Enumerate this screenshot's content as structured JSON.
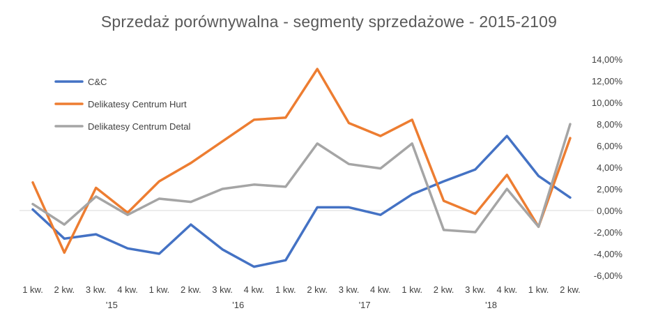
{
  "chart_data": {
    "type": "line",
    "title": "Sprzedaż porównywalna - segmenty sprzedażowe - 2015-2109",
    "categories": [
      "1 kw.",
      "2 kw.",
      "3 kw.",
      "4 kw.",
      "1 kw.",
      "2 kw.",
      "3 kw.",
      "4 kw.",
      "1 kw.",
      "2 kw.",
      "3 kw.",
      "4 kw.",
      "1 kw.",
      "2 kw.",
      "3 kw.",
      "4 kw.",
      "1 kw.",
      "2 kw."
    ],
    "year_labels": [
      {
        "label": "'15",
        "index": 2.5
      },
      {
        "label": "'16",
        "index": 6.5
      },
      {
        "label": "'17",
        "index": 10.5
      },
      {
        "label": "'18",
        "index": 14.5
      }
    ],
    "ylim": [
      -6,
      14
    ],
    "yticks": [
      14,
      12,
      10,
      8,
      6,
      4,
      2,
      0,
      -2,
      -4,
      -6
    ],
    "ytick_labels": [
      "14,00%",
      "12,00%",
      "10,00%",
      "8,00%",
      "6,00%",
      "4,00%",
      "2,00%",
      "0,00%",
      "-2,00%",
      "-4,00%",
      "-6,00%"
    ],
    "y_axis_position": "right",
    "legend_position": "top-left",
    "grid": false,
    "series": [
      {
        "name": "C&C",
        "color": "#4472C4",
        "values": [
          0.1,
          -2.6,
          -2.2,
          -3.5,
          -4.0,
          -1.3,
          -3.6,
          -5.2,
          -4.6,
          0.3,
          0.3,
          -0.4,
          1.5,
          2.7,
          3.8,
          6.9,
          3.2,
          1.2
        ]
      },
      {
        "name": "Delikatesy Centrum Hurt",
        "color": "#ED7D31",
        "values": [
          2.6,
          -3.9,
          2.1,
          -0.2,
          2.7,
          4.4,
          6.4,
          8.4,
          8.6,
          13.1,
          8.1,
          6.9,
          8.4,
          0.9,
          -0.3,
          3.3,
          -1.5,
          6.7
        ]
      },
      {
        "name": "Delikatesy Centrum Detal",
        "color": "#A5A5A5",
        "values": [
          0.6,
          -1.3,
          1.3,
          -0.4,
          1.1,
          0.8,
          2.0,
          2.4,
          2.2,
          6.2,
          4.3,
          3.9,
          6.2,
          -1.8,
          -2.0,
          2.0,
          -1.5,
          8.0
        ]
      }
    ]
  }
}
